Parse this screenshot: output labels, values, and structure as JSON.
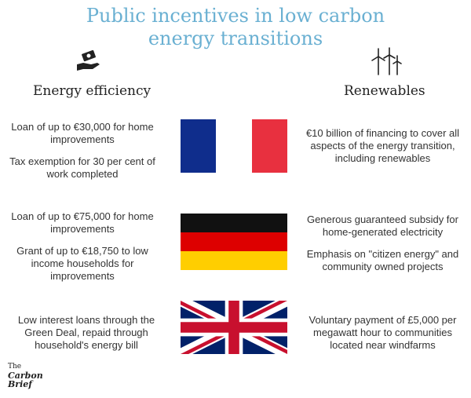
{
  "title": {
    "line1": "Public incentives in low carbon",
    "line2": "energy transitions"
  },
  "columns": {
    "left": {
      "label": "Energy efficiency",
      "icon": "hand-money-icon"
    },
    "right": {
      "label": "Renewables",
      "icon": "wind-turbines-icon"
    }
  },
  "rows": [
    {
      "country_flag": "france-flag",
      "colors": [
        "#0f2d8c",
        "#ffffff",
        "#e8303f"
      ],
      "efficiency": [
        "Loan of up to €30,000 for home improvements",
        "Tax exemption for 30 per cent of work completed"
      ],
      "renewables": [
        "€10 billion of financing to cover all aspects of the energy transition, including renewables"
      ]
    },
    {
      "country_flag": "germany-flag",
      "colors": [
        "#111111",
        "#dd0000",
        "#ffce00"
      ],
      "efficiency": [
        "Loan of up to €75,000 for home improvements",
        "Grant of up to €18,750 to low income households for improvements"
      ],
      "renewables": [
        "Generous guaranteed subsidy for home-generated electricity",
        "Emphasis on \"citizen energy\" and community owned projects"
      ]
    },
    {
      "country_flag": "uk-flag",
      "colors": [
        "#012169",
        "#ffffff",
        "#c8102e"
      ],
      "efficiency": [
        "Low interest loans through the Green Deal, repaid through household's energy bill"
      ],
      "renewables": [
        "Voluntary payment of £5,000 per megawatt hour to communities located near windfarms"
      ]
    }
  ],
  "logo": {
    "line1": "The",
    "line2": "Carbon",
    "line3": "Brief"
  }
}
